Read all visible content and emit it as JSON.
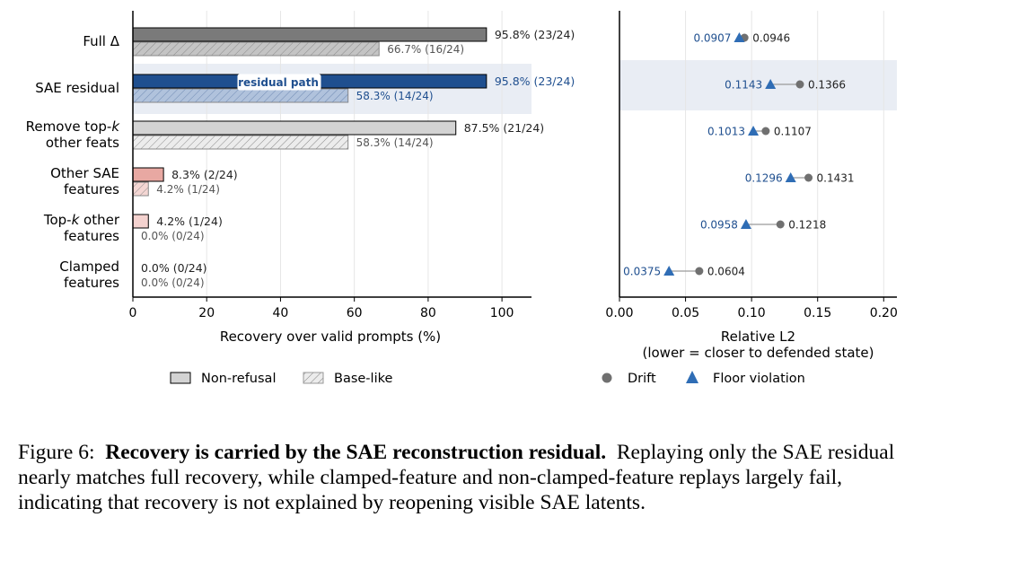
{
  "chart_data": [
    {
      "type": "bar",
      "orientation": "horizontal",
      "xlabel": "Recovery over valid prompts (%)",
      "xlim": [
        0,
        108
      ],
      "xticks": [
        0,
        20,
        40,
        60,
        80,
        100
      ],
      "grid": "vertical",
      "highlighted_category": "SAE residual",
      "highlight_annotation": "residual path",
      "categories": [
        {
          "lines": [
            {
              "text": "Full Δ"
            }
          ]
        },
        {
          "lines": [
            {
              "text": "SAE residual"
            }
          ]
        },
        {
          "lines": [
            {
              "text": "Remove top-",
              "italic": "k"
            },
            {
              "text": "other feats"
            }
          ]
        },
        {
          "lines": [
            {
              "text": "Other SAE"
            },
            {
              "text": "features"
            }
          ]
        },
        {
          "lines": [
            {
              "text": "Top-",
              "italic": "k",
              "rest": " other"
            },
            {
              "text": "features"
            }
          ]
        },
        {
          "lines": [
            {
              "text": "Clamped"
            },
            {
              "text": "features"
            }
          ]
        }
      ],
      "series": [
        {
          "name": "Non-refusal",
          "values": [
            95.8,
            95.8,
            87.5,
            8.3,
            4.2,
            0.0
          ],
          "labels": [
            "95.8% (23/24)",
            "95.8% (23/24)",
            "87.5% (21/24)",
            "8.3% (2/24)",
            "4.2% (1/24)",
            "0.0% (0/24)"
          ],
          "colors": [
            "#7a7a7a",
            "#1f4f8f",
            "#d3d3d3",
            "#e8a8a2",
            "#f4d2cf",
            "#d3d3d3"
          ]
        },
        {
          "name": "Base-like",
          "hatched": true,
          "values": [
            66.7,
            58.3,
            58.3,
            4.2,
            0.0,
            0.0
          ],
          "labels": [
            "66.7% (16/24)",
            "58.3% (14/24)",
            "58.3% (14/24)",
            "4.2% (1/24)",
            "0.0% (0/24)",
            "0.0% (0/24)"
          ],
          "colors": [
            "#c4c4c4",
            "#b0c2dc",
            "#ececec",
            "#f4d6d3",
            "#f7e2e0",
            "#ececec"
          ]
        }
      ],
      "legend": {
        "placement": "bottom",
        "items": [
          "Non-refusal",
          "Base-like"
        ]
      }
    },
    {
      "type": "dumbbell",
      "xlabel": "Relative L2",
      "xlabel2": "(lower = closer to defended state)",
      "xlim": [
        0,
        0.21
      ],
      "xticks": [
        "0.00",
        "0.05",
        "0.10",
        "0.15",
        "0.20"
      ],
      "grid": "vertical",
      "highlighted_row": 1,
      "series": [
        {
          "name": "Drift",
          "marker": "circle",
          "color": "#707070",
          "values": [
            0.0946,
            0.1366,
            0.1107,
            0.1431,
            0.1218,
            0.0604
          ],
          "labels": [
            "0.0946",
            "0.1366",
            "0.1107",
            "0.1431",
            "0.1218",
            "0.0604"
          ]
        },
        {
          "name": "Floor violation",
          "marker": "triangle",
          "color": "#2f6db5",
          "values": [
            0.0907,
            0.1143,
            0.1013,
            0.1296,
            0.0958,
            0.0375
          ],
          "labels": [
            "0.0907",
            "0.1143",
            "0.1013",
            "0.1296",
            "0.0958",
            "0.0375"
          ]
        }
      ],
      "legend": {
        "placement": "bottom",
        "items": [
          "Drift",
          "Floor violation"
        ]
      }
    }
  ],
  "caption": {
    "label": "Figure 6:",
    "title": "Recovery is carried by the SAE reconstruction residual.",
    "text": "Replaying only the SAE residual nearly matches full recovery, while clamped-feature and non-clamped-feature replays largely fail, indicating that recovery is not explained by reopening visible SAE latents."
  },
  "colors": {
    "highlight_band": "#e9edf4",
    "grid": "#e6e6e6",
    "axis": "#000000",
    "blue_text": "#1f4f8f",
    "label_text": "#333333"
  }
}
